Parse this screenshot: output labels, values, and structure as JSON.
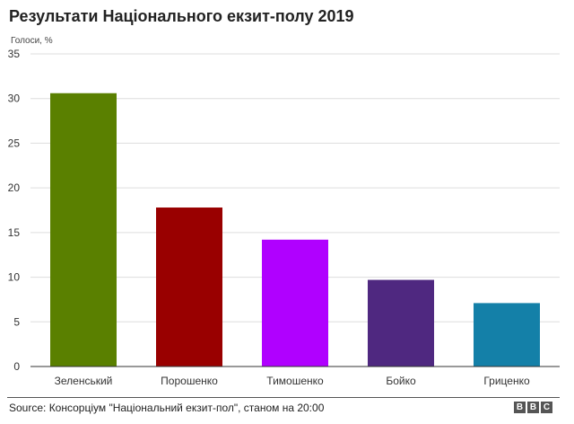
{
  "title": "Результати Національного екзит-полу 2019",
  "chart_data": {
    "type": "bar",
    "ylabel": "Голоси, %",
    "ylim": [
      0,
      35
    ],
    "yticks": [
      0,
      5,
      10,
      15,
      20,
      25,
      30,
      35
    ],
    "grid": true,
    "categories": [
      "Зеленський",
      "Порошенко",
      "Тимошенко",
      "Бойко",
      "Гриценко"
    ],
    "values": [
      30.6,
      17.8,
      14.2,
      9.7,
      7.1
    ],
    "colors": [
      "#5a8000",
      "#990000",
      "#b000ff",
      "#4f2880",
      "#1480a8"
    ]
  },
  "source": "Source: Консорціум \"Національний екзит-пол\", станом на 20:00",
  "logo": [
    "B",
    "B",
    "C"
  ]
}
